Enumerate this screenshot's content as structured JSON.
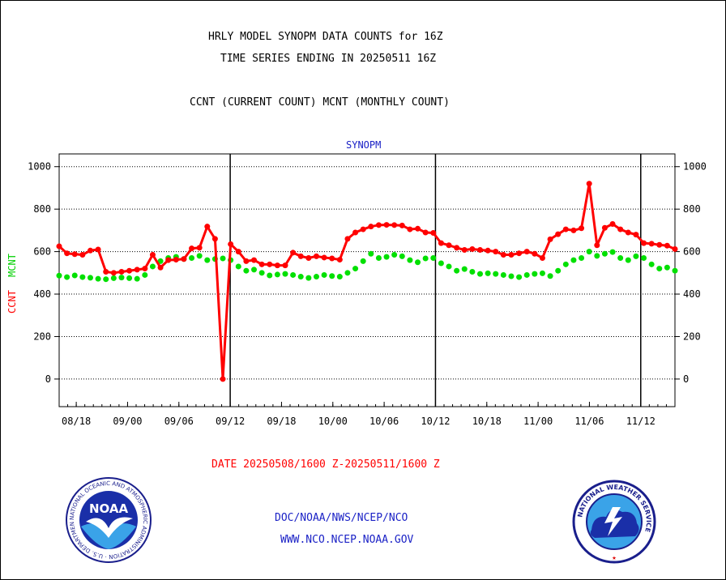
{
  "header": {
    "title_line1": "HRLY MODEL SYNOPM DATA COUNTS for 16Z",
    "title_line2": "TIME SERIES ENDING IN 20250511 16Z",
    "subtitle": "CCNT (CURRENT COUNT) MCNT (MONTHLY COUNT)"
  },
  "footer": {
    "date_range": "DATE 20250508/1600 Z-20250511/1600 Z",
    "link1": "DOC/NOAA/NWS/NCEP/NCO",
    "link2": "WWW.NCO.NCEP.NOAA.GOV"
  },
  "logos": {
    "noaa_text": "NOAA",
    "noaa_ring": "NATIONAL OCEANIC AND ATMOSPHERIC ADMINISTRATION · U.S. DEPARTMENT OF COMMERCE ·",
    "nws_ring": "NATIONAL WEATHER SERVICE"
  },
  "colors": {
    "ccnt": "#ff0000",
    "mcnt": "#00e000",
    "frame": "#000000",
    "panel_title": "#1b22c6"
  },
  "chart_data": {
    "type": "line",
    "title": "SYNOPM",
    "ylabel_left_ccnt": "CCNT",
    "ylabel_left_mcnt": "MCNT",
    "ylim": [
      -130,
      1060
    ],
    "yticks": [
      0,
      200,
      400,
      600,
      800,
      1000
    ],
    "grid": true,
    "x_tick_labels": [
      "08/18",
      "09/00",
      "09/06",
      "09/12",
      "09/18",
      "10/00",
      "10/06",
      "10/12",
      "10/18",
      "11/00",
      "11/06",
      "11/12"
    ],
    "x_tick_hours": [
      2,
      8,
      14,
      20,
      26,
      32,
      38,
      44,
      50,
      56,
      62,
      68
    ],
    "day_boundaries_hours": [
      20,
      44,
      68
    ],
    "xlim_hours": [
      0,
      72
    ],
    "series": [
      {
        "name": "CCNT",
        "color": "#ff0000",
        "values": [
          625,
          592,
          588,
          585,
          605,
          610,
          505,
          500,
          505,
          510,
          515,
          520,
          585,
          525,
          560,
          562,
          565,
          615,
          618,
          718,
          660,
          0,
          635,
          600,
          555,
          560,
          540,
          540,
          535,
          535,
          595,
          578,
          570,
          578,
          572,
          568,
          562,
          660,
          690,
          705,
          718,
          725,
          726,
          725,
          723,
          705,
          708,
          690,
          688,
          640,
          630,
          618,
          608,
          612,
          608,
          605,
          600,
          585,
          585,
          592,
          600,
          590,
          570,
          658,
          682,
          705,
          700,
          710,
          920,
          630,
          712,
          730,
          705,
          690,
          680,
          640,
          637,
          632,
          628,
          612
        ]
      },
      {
        "name": "MCNT",
        "color": "#00e000",
        "values": [
          487,
          480,
          488,
          480,
          477,
          472,
          470,
          475,
          478,
          475,
          472,
          490,
          530,
          555,
          570,
          575,
          565,
          570,
          580,
          560,
          565,
          568,
          560,
          530,
          510,
          515,
          500,
          488,
          492,
          495,
          490,
          482,
          476,
          482,
          490,
          485,
          482,
          500,
          520,
          555,
          590,
          570,
          575,
          585,
          578,
          560,
          550,
          568,
          570,
          545,
          530,
          510,
          518,
          505,
          495,
          498,
          495,
          490,
          484,
          480,
          490,
          495,
          498,
          485,
          510,
          540,
          560,
          570,
          600,
          580,
          590,
          598,
          570,
          560,
          578,
          570,
          540,
          520,
          525,
          510
        ]
      }
    ]
  }
}
